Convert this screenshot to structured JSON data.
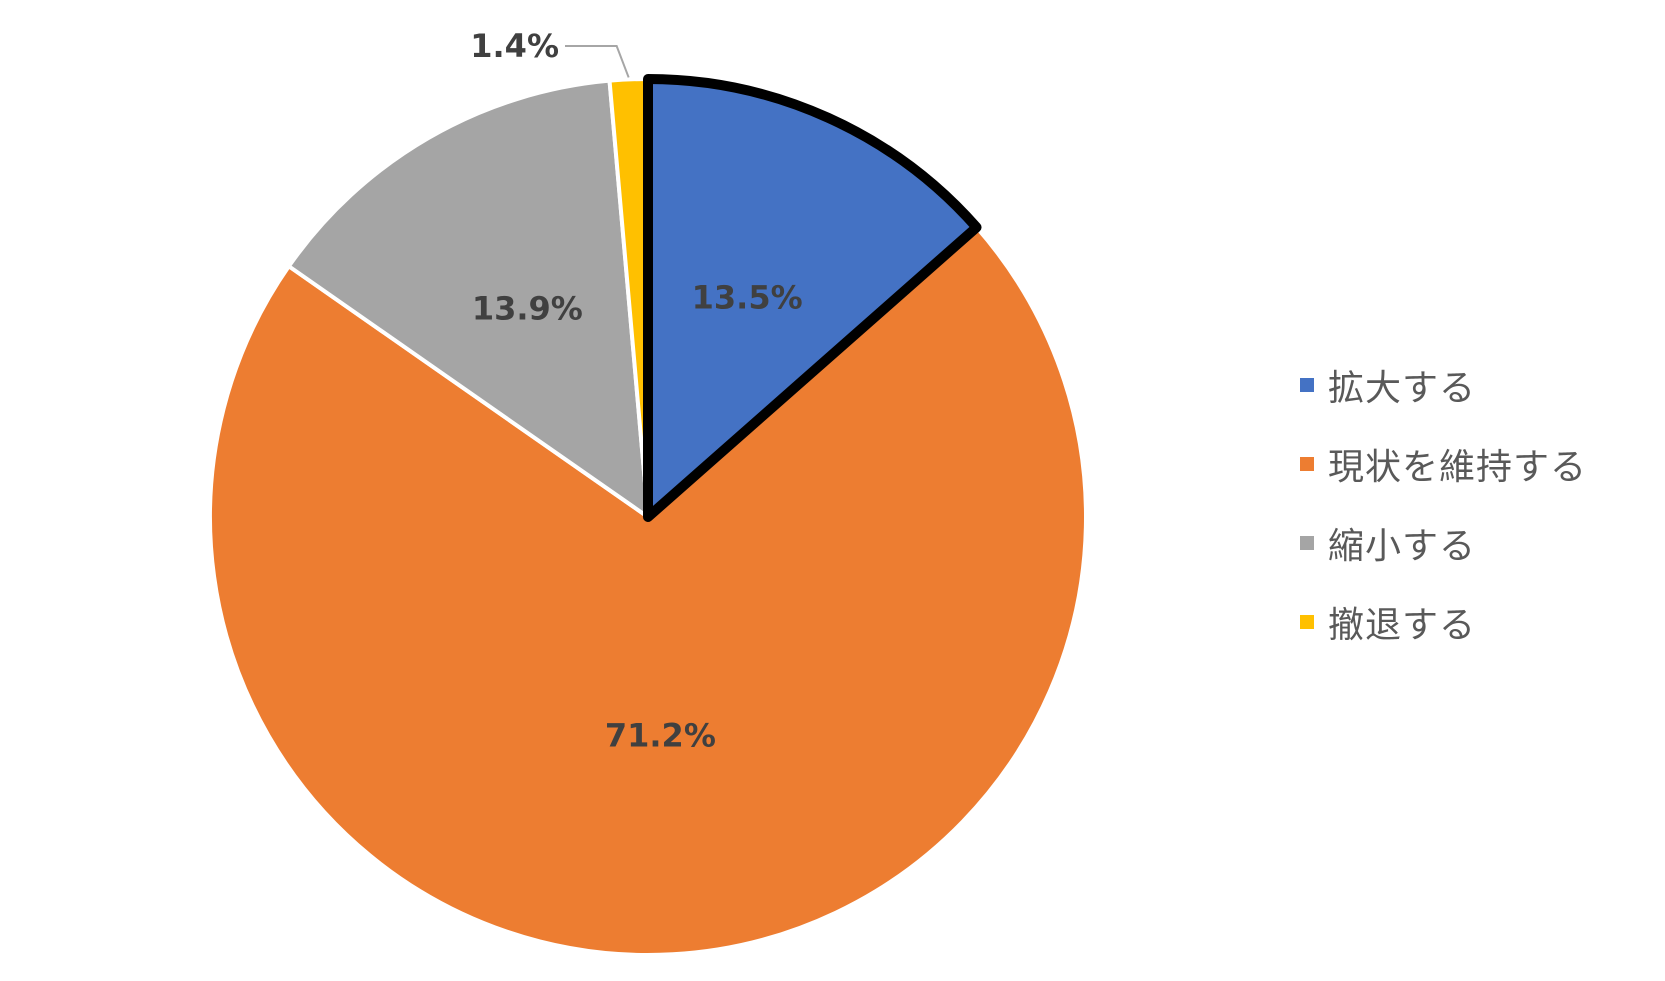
{
  "chart_data": {
    "type": "pie",
    "title": "",
    "categories": [
      "拡大する",
      "現状を維持する",
      "縮小する",
      "撤退する"
    ],
    "values": [
      13.5,
      71.2,
      13.9,
      1.4
    ],
    "labels": [
      "13.5%",
      "71.2%",
      "13.9%",
      "1.4%"
    ],
    "colors": [
      "#4472C4",
      "#ED7D31",
      "#A5A5A5",
      "#FFC000"
    ],
    "highlighted_slice": "拡大する",
    "start_angle": "12 o'clock",
    "direction": "clockwise",
    "legend_position": "right"
  }
}
